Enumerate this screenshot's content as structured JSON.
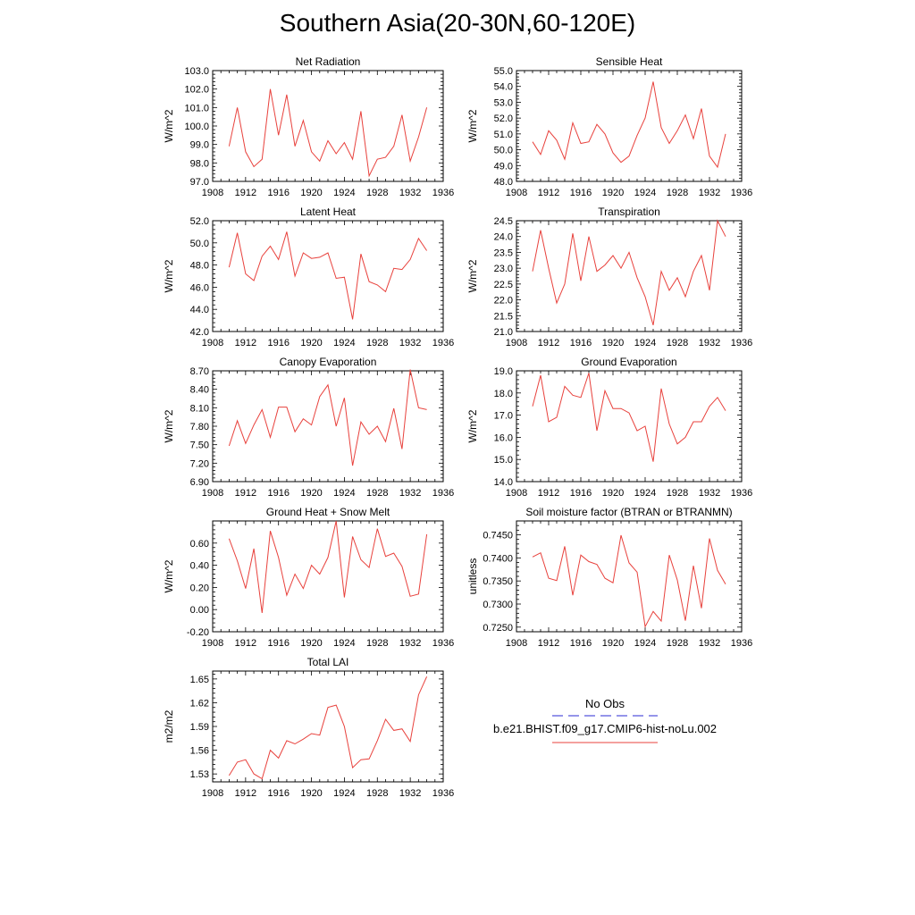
{
  "page": {
    "title": "Southern Asia(20-30N,60-120E)"
  },
  "legend": {
    "entries": [
      {
        "label": "No Obs",
        "color": "#2b2bd6",
        "style": "dashed"
      },
      {
        "label": "b.e21.BHIST.f09_g17.CMIP6-hist-noLu.002",
        "color": "#e8413c",
        "style": "solid"
      }
    ]
  },
  "chart_data": [
    {
      "type": "line",
      "title": "Net Radiation",
      "ylabel": "W/m^2",
      "xlim": [
        1908,
        1936
      ],
      "ylim": [
        97.0,
        103.0
      ],
      "xticks": [
        1908,
        1912,
        1916,
        1920,
        1924,
        1928,
        1932,
        1936
      ],
      "xtick_labels": [
        "1908",
        "1912",
        "1916",
        "1920",
        "1924",
        "1928",
        "1932",
        "1936"
      ],
      "yticks": [
        97.0,
        98.0,
        99.0,
        100.0,
        101.0,
        102.0,
        103.0
      ],
      "ytick_labels": [
        "97.0",
        "98.0",
        "99.0",
        "100.0",
        "101.0",
        "102.0",
        "103.0"
      ],
      "series": [
        {
          "color": "#e8413c",
          "x": [
            1910,
            1911,
            1912,
            1913,
            1914,
            1915,
            1916,
            1917,
            1918,
            1919,
            1920,
            1921,
            1922,
            1923,
            1924,
            1925,
            1926,
            1927,
            1928,
            1929,
            1930,
            1931,
            1932,
            1933,
            1934
          ],
          "values": [
            98.9,
            101.0,
            98.6,
            97.8,
            98.2,
            102.0,
            99.5,
            101.7,
            98.9,
            100.3,
            98.6,
            98.1,
            99.2,
            98.5,
            99.1,
            98.2,
            100.8,
            97.3,
            98.2,
            98.3,
            98.9,
            100.6,
            98.1,
            99.4,
            101.0
          ]
        }
      ]
    },
    {
      "type": "line",
      "title": "Sensible Heat",
      "ylabel": "W/m^2",
      "xlim": [
        1908,
        1936
      ],
      "ylim": [
        48.0,
        55.0
      ],
      "xticks": [
        1908,
        1912,
        1916,
        1920,
        1924,
        1928,
        1932,
        1936
      ],
      "xtick_labels": [
        "1908",
        "1912",
        "1916",
        "1920",
        "1924",
        "1928",
        "1932",
        "1936"
      ],
      "yticks": [
        48.0,
        49.0,
        50.0,
        51.0,
        52.0,
        53.0,
        54.0,
        55.0
      ],
      "ytick_labels": [
        "48.0",
        "49.0",
        "50.0",
        "51.0",
        "52.0",
        "53.0",
        "54.0",
        "55.0"
      ],
      "series": [
        {
          "color": "#e8413c",
          "x": [
            1910,
            1911,
            1912,
            1913,
            1914,
            1915,
            1916,
            1917,
            1918,
            1919,
            1920,
            1921,
            1922,
            1923,
            1924,
            1925,
            1926,
            1927,
            1928,
            1929,
            1930,
            1931,
            1932,
            1933,
            1934
          ],
          "values": [
            50.5,
            49.7,
            51.2,
            50.6,
            49.4,
            51.7,
            50.4,
            50.5,
            51.6,
            51.0,
            49.8,
            49.2,
            49.6,
            50.9,
            52.0,
            54.3,
            51.4,
            50.4,
            51.2,
            52.2,
            50.7,
            52.6,
            49.6,
            48.9,
            51.0
          ]
        }
      ]
    },
    {
      "type": "line",
      "title": "Latent Heat",
      "ylabel": "W/m^2",
      "xlim": [
        1908,
        1936
      ],
      "ylim": [
        42.0,
        52.0
      ],
      "xticks": [
        1908,
        1912,
        1916,
        1920,
        1924,
        1928,
        1932,
        1936
      ],
      "xtick_labels": [
        "1908",
        "1912",
        "1916",
        "1920",
        "1924",
        "1928",
        "1932",
        "1936"
      ],
      "yticks": [
        42.0,
        44.0,
        46.0,
        48.0,
        50.0,
        52.0
      ],
      "ytick_labels": [
        "42.0",
        "44.0",
        "46.0",
        "48.0",
        "50.0",
        "52.0"
      ],
      "series": [
        {
          "color": "#e8413c",
          "x": [
            1910,
            1911,
            1912,
            1913,
            1914,
            1915,
            1916,
            1917,
            1918,
            1919,
            1920,
            1921,
            1922,
            1923,
            1924,
            1925,
            1926,
            1927,
            1928,
            1929,
            1930,
            1931,
            1932,
            1933,
            1934
          ],
          "values": [
            47.8,
            50.9,
            47.2,
            46.6,
            48.8,
            49.7,
            48.5,
            51.0,
            47.0,
            49.1,
            48.6,
            48.7,
            49.1,
            46.8,
            46.9,
            43.1,
            49.0,
            46.5,
            46.2,
            45.6,
            47.7,
            47.6,
            48.5,
            50.4,
            49.3
          ]
        }
      ]
    },
    {
      "type": "line",
      "title": "Transpiration",
      "ylabel": "W/m^2",
      "xlim": [
        1908,
        1936
      ],
      "ylim": [
        21.0,
        24.5
      ],
      "xticks": [
        1908,
        1912,
        1916,
        1920,
        1924,
        1928,
        1932,
        1936
      ],
      "xtick_labels": [
        "1908",
        "1912",
        "1916",
        "1920",
        "1924",
        "1928",
        "1932",
        "1936"
      ],
      "yticks": [
        21.0,
        21.5,
        22.0,
        22.5,
        23.0,
        23.5,
        24.0,
        24.5
      ],
      "ytick_labels": [
        "21.0",
        "21.5",
        "22.0",
        "22.5",
        "23.0",
        "23.5",
        "24.0",
        "24.5"
      ],
      "series": [
        {
          "color": "#e8413c",
          "x": [
            1910,
            1911,
            1912,
            1913,
            1914,
            1915,
            1916,
            1917,
            1918,
            1919,
            1920,
            1921,
            1922,
            1923,
            1924,
            1925,
            1926,
            1927,
            1928,
            1929,
            1930,
            1931,
            1932,
            1933,
            1934
          ],
          "values": [
            22.9,
            24.2,
            23.0,
            21.9,
            22.5,
            24.1,
            22.6,
            24.0,
            22.9,
            23.1,
            23.4,
            23.0,
            23.5,
            22.7,
            22.1,
            21.2,
            22.9,
            22.3,
            22.7,
            22.1,
            22.9,
            23.4,
            22.3,
            24.5,
            24.0
          ]
        }
      ]
    },
    {
      "type": "line",
      "title": "Canopy Evaporation",
      "ylabel": "W/m^2",
      "xlim": [
        1908,
        1936
      ],
      "ylim": [
        6.9,
        8.7
      ],
      "xticks": [
        1908,
        1912,
        1916,
        1920,
        1924,
        1928,
        1932,
        1936
      ],
      "xtick_labels": [
        "1908",
        "1912",
        "1916",
        "1920",
        "1924",
        "1928",
        "1932",
        "1936"
      ],
      "yticks": [
        6.9,
        7.2,
        7.5,
        7.8,
        8.1,
        8.4,
        8.7
      ],
      "ytick_labels": [
        "6.90",
        "7.20",
        "7.50",
        "7.80",
        "8.10",
        "8.40",
        "8.70"
      ],
      "series": [
        {
          "color": "#e8413c",
          "x": [
            1910,
            1911,
            1912,
            1913,
            1914,
            1915,
            1916,
            1917,
            1918,
            1919,
            1920,
            1921,
            1922,
            1923,
            1924,
            1925,
            1926,
            1927,
            1928,
            1929,
            1930,
            1931,
            1932,
            1933,
            1934
          ],
          "values": [
            7.48,
            7.89,
            7.52,
            7.82,
            8.07,
            7.62,
            8.11,
            8.11,
            7.71,
            7.92,
            7.82,
            8.28,
            8.47,
            7.8,
            8.26,
            7.16,
            7.87,
            7.67,
            7.8,
            7.55,
            8.09,
            7.43,
            8.72,
            8.1,
            8.07
          ]
        }
      ]
    },
    {
      "type": "line",
      "title": "Ground Evaporation",
      "ylabel": "W/m^2",
      "xlim": [
        1908,
        1936
      ],
      "ylim": [
        14.0,
        19.0
      ],
      "xticks": [
        1908,
        1912,
        1916,
        1920,
        1924,
        1928,
        1932,
        1936
      ],
      "xtick_labels": [
        "1908",
        "1912",
        "1916",
        "1920",
        "1924",
        "1928",
        "1932",
        "1936"
      ],
      "yticks": [
        14.0,
        15.0,
        16.0,
        17.0,
        18.0,
        19.0
      ],
      "ytick_labels": [
        "14.0",
        "15.0",
        "16.0",
        "17.0",
        "18.0",
        "19.0"
      ],
      "series": [
        {
          "color": "#e8413c",
          "x": [
            1910,
            1911,
            1912,
            1913,
            1914,
            1915,
            1916,
            1917,
            1918,
            1919,
            1920,
            1921,
            1922,
            1923,
            1924,
            1925,
            1926,
            1927,
            1928,
            1929,
            1930,
            1931,
            1932,
            1933,
            1934
          ],
          "values": [
            17.4,
            18.8,
            16.7,
            16.9,
            18.3,
            17.9,
            17.8,
            18.9,
            16.3,
            18.1,
            17.3,
            17.3,
            17.1,
            16.3,
            16.5,
            14.9,
            18.2,
            16.6,
            15.7,
            16.0,
            16.7,
            16.7,
            17.4,
            17.8,
            17.2
          ]
        }
      ]
    },
    {
      "type": "line",
      "title": "Ground Heat + Snow Melt",
      "ylabel": "W/m^2",
      "xlim": [
        1908,
        1936
      ],
      "ylim": [
        -0.2,
        0.8
      ],
      "xticks": [
        1908,
        1912,
        1916,
        1920,
        1924,
        1928,
        1932,
        1936
      ],
      "xtick_labels": [
        "1908",
        "1912",
        "1916",
        "1920",
        "1924",
        "1928",
        "1932",
        "1936"
      ],
      "yticks": [
        -0.2,
        0.0,
        0.2,
        0.4,
        0.6
      ],
      "ytick_labels": [
        "-0.20",
        "0.00",
        "0.20",
        "0.40",
        "0.60"
      ],
      "series": [
        {
          "color": "#e8413c",
          "x": [
            1910,
            1911,
            1912,
            1913,
            1914,
            1915,
            1916,
            1917,
            1918,
            1919,
            1920,
            1921,
            1922,
            1923,
            1924,
            1925,
            1926,
            1927,
            1928,
            1929,
            1930,
            1931,
            1932,
            1933,
            1934
          ],
          "values": [
            0.64,
            0.44,
            0.19,
            0.55,
            -0.03,
            0.71,
            0.47,
            0.13,
            0.32,
            0.19,
            0.4,
            0.32,
            0.47,
            0.8,
            0.11,
            0.66,
            0.45,
            0.38,
            0.73,
            0.48,
            0.51,
            0.39,
            0.12,
            0.14,
            0.68
          ]
        }
      ]
    },
    {
      "type": "line",
      "title": "Soil moisture factor (BTRAN or BTRANMN)",
      "ylabel": "unitless",
      "xlim": [
        1908,
        1936
      ],
      "ylim": [
        0.724,
        0.748
      ],
      "xticks": [
        1908,
        1912,
        1916,
        1920,
        1924,
        1928,
        1932,
        1936
      ],
      "xtick_labels": [
        "1908",
        "1912",
        "1916",
        "1920",
        "1924",
        "1928",
        "1932",
        "1936"
      ],
      "yticks": [
        0.725,
        0.73,
        0.735,
        0.74,
        0.745
      ],
      "ytick_labels": [
        "0.7250",
        "0.7300",
        "0.7350",
        "0.7400",
        "0.7450"
      ],
      "series": [
        {
          "color": "#e8413c",
          "x": [
            1910,
            1911,
            1912,
            1913,
            1914,
            1915,
            1916,
            1917,
            1918,
            1919,
            1920,
            1921,
            1922,
            1923,
            1924,
            1925,
            1926,
            1927,
            1928,
            1929,
            1930,
            1931,
            1932,
            1933,
            1934
          ],
          "values": [
            0.7402,
            0.7411,
            0.7356,
            0.7351,
            0.7425,
            0.7319,
            0.7406,
            0.7392,
            0.7386,
            0.7356,
            0.7346,
            0.7449,
            0.7389,
            0.7369,
            0.7251,
            0.7284,
            0.7263,
            0.7406,
            0.7352,
            0.7264,
            0.7383,
            0.7291,
            0.7442,
            0.7373,
            0.7343
          ]
        }
      ]
    },
    {
      "type": "line",
      "title": "Total LAI",
      "ylabel": "m2/m2",
      "xlim": [
        1908,
        1936
      ],
      "ylim": [
        1.52,
        1.66
      ],
      "xticks": [
        1908,
        1912,
        1916,
        1920,
        1924,
        1928,
        1932,
        1936
      ],
      "xtick_labels": [
        "1908",
        "1912",
        "1916",
        "1920",
        "1924",
        "1928",
        "1932",
        "1936"
      ],
      "yticks": [
        1.53,
        1.56,
        1.59,
        1.62,
        1.65
      ],
      "ytick_labels": [
        "1.53",
        "1.56",
        "1.59",
        "1.62",
        "1.65"
      ],
      "series": [
        {
          "color": "#e8413c",
          "x": [
            1910,
            1911,
            1912,
            1913,
            1914,
            1915,
            1916,
            1917,
            1918,
            1919,
            1920,
            1921,
            1922,
            1923,
            1924,
            1925,
            1926,
            1927,
            1928,
            1929,
            1930,
            1931,
            1932,
            1933,
            1934
          ],
          "values": [
            1.528,
            1.545,
            1.548,
            1.53,
            1.524,
            1.56,
            1.55,
            1.572,
            1.568,
            1.574,
            1.581,
            1.579,
            1.614,
            1.617,
            1.59,
            1.538,
            1.548,
            1.549,
            1.572,
            1.599,
            1.585,
            1.587,
            1.571,
            1.63,
            1.653
          ]
        }
      ]
    }
  ]
}
